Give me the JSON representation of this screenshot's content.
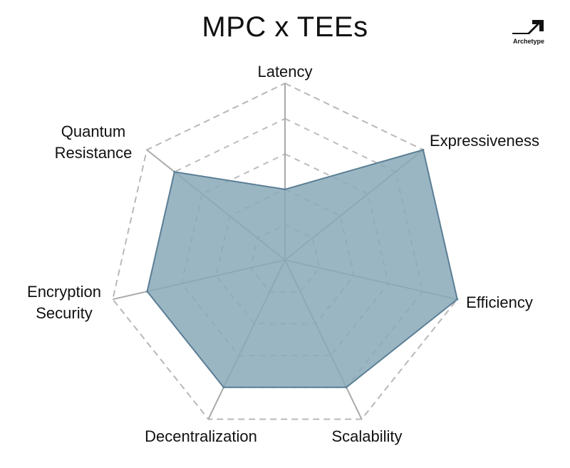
{
  "title": "MPC x TEEs",
  "logo": {
    "brand": "Archetype"
  },
  "chart_data": {
    "type": "radar",
    "title": "MPC x TEEs",
    "axes": [
      {
        "label": [
          "Latency"
        ]
      },
      {
        "label": [
          "Expressiveness"
        ]
      },
      {
        "label": [
          "Efficiency"
        ]
      },
      {
        "label": [
          "Scalability"
        ]
      },
      {
        "label": [
          "Decentralization"
        ]
      },
      {
        "label": [
          "Encryption",
          "Security"
        ]
      },
      {
        "label": [
          "Quantum",
          "Resistance"
        ]
      }
    ],
    "range": [
      0,
      5
    ],
    "rings": [
      1,
      2,
      3,
      4,
      5
    ],
    "grid": true,
    "series": [
      {
        "values": [
          2,
          5,
          5,
          4,
          4,
          4,
          4
        ],
        "color": "#8aa9b9",
        "stroke": "#5b7f95"
      }
    ]
  }
}
